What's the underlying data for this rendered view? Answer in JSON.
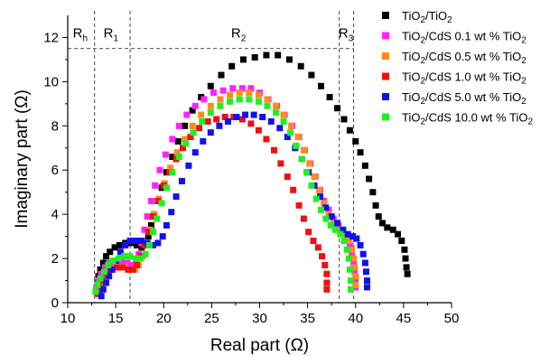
{
  "chart_data": {
    "type": "scatter",
    "title": "",
    "xlabel": "Real part (Ω)",
    "ylabel": "Imaginary part (Ω)",
    "xlim": [
      10,
      50
    ],
    "ylim": [
      0,
      13
    ],
    "x_ticks": [
      10,
      15,
      20,
      25,
      30,
      35,
      40,
      45,
      50
    ],
    "y_ticks": [
      0,
      2,
      4,
      6,
      8,
      10,
      12
    ],
    "legend_position": "top-right",
    "grid": false,
    "series": [
      {
        "name_main": "TiO",
        "name_sub1": "2",
        "name_mid": "/TiO",
        "name_sub2": "2",
        "name_end": "",
        "color": "#000000",
        "points": [
          [
            13.0,
            0.6
          ],
          [
            13.1,
            0.9
          ],
          [
            13.2,
            1.2
          ],
          [
            13.4,
            1.5
          ],
          [
            13.7,
            1.8
          ],
          [
            14.0,
            2.1
          ],
          [
            14.4,
            2.3
          ],
          [
            14.9,
            2.5
          ],
          [
            15.4,
            2.6
          ],
          [
            16.0,
            2.7
          ],
          [
            16.6,
            2.7
          ],
          [
            17.2,
            2.6
          ],
          [
            17.7,
            2.5
          ],
          [
            18.1,
            2.6
          ],
          [
            18.4,
            3.0
          ],
          [
            18.7,
            3.5
          ],
          [
            19.0,
            4.0
          ],
          [
            19.4,
            4.6
          ],
          [
            19.8,
            5.2
          ],
          [
            20.3,
            5.9
          ],
          [
            20.9,
            6.6
          ],
          [
            21.5,
            7.3
          ],
          [
            22.2,
            8.0
          ],
          [
            23.0,
            8.7
          ],
          [
            23.9,
            9.3
          ],
          [
            24.9,
            9.8
          ],
          [
            26.0,
            10.3
          ],
          [
            27.1,
            10.7
          ],
          [
            28.3,
            11.0
          ],
          [
            29.5,
            11.1
          ],
          [
            30.7,
            11.2
          ],
          [
            31.9,
            11.2
          ],
          [
            33.1,
            11.0
          ],
          [
            34.3,
            10.7
          ],
          [
            35.4,
            10.3
          ],
          [
            36.4,
            9.8
          ],
          [
            37.3,
            9.3
          ],
          [
            38.1,
            8.8
          ],
          [
            38.8,
            8.3
          ],
          [
            39.4,
            7.8
          ],
          [
            40.0,
            7.3
          ],
          [
            40.5,
            6.8
          ],
          [
            41.0,
            6.2
          ],
          [
            41.4,
            5.6
          ],
          [
            41.8,
            5.0
          ],
          [
            42.1,
            4.4
          ],
          [
            42.4,
            3.9
          ],
          [
            42.8,
            3.6
          ],
          [
            43.3,
            3.4
          ],
          [
            43.9,
            3.3
          ],
          [
            44.4,
            3.1
          ],
          [
            44.8,
            2.8
          ],
          [
            45.1,
            2.4
          ],
          [
            45.2,
            2.0
          ],
          [
            45.3,
            1.6
          ],
          [
            45.4,
            1.3
          ]
        ]
      },
      {
        "name_main": "TiO",
        "name_sub1": "2",
        "name_mid": "/CdS 0.1 wt % TiO",
        "name_sub2": "2",
        "name_end": "",
        "color": "#ff22ff",
        "points": [
          [
            13.0,
            0.7
          ],
          [
            13.2,
            1.0
          ],
          [
            13.5,
            1.3
          ],
          [
            13.9,
            1.6
          ],
          [
            14.4,
            1.8
          ],
          [
            15.0,
            1.9
          ],
          [
            15.6,
            1.9
          ],
          [
            16.2,
            1.8
          ],
          [
            16.7,
            1.7
          ],
          [
            17.1,
            1.8
          ],
          [
            17.4,
            2.2
          ],
          [
            17.7,
            2.7
          ],
          [
            18.0,
            3.3
          ],
          [
            18.3,
            3.9
          ],
          [
            18.7,
            4.6
          ],
          [
            19.1,
            5.3
          ],
          [
            19.6,
            6.0
          ],
          [
            20.2,
            6.7
          ],
          [
            20.9,
            7.4
          ],
          [
            21.6,
            8.0
          ],
          [
            22.4,
            8.5
          ],
          [
            23.3,
            8.9
          ],
          [
            24.2,
            9.2
          ],
          [
            25.2,
            9.5
          ],
          [
            26.2,
            9.6
          ],
          [
            27.2,
            9.7
          ],
          [
            28.2,
            9.7
          ],
          [
            29.1,
            9.7
          ],
          [
            30.0,
            9.5
          ],
          [
            30.9,
            9.2
          ],
          [
            31.8,
            8.9
          ],
          [
            32.6,
            8.5
          ],
          [
            33.4,
            8.0
          ],
          [
            34.1,
            7.5
          ],
          [
            34.7,
            6.9
          ],
          [
            35.3,
            6.3
          ],
          [
            35.8,
            5.7
          ],
          [
            36.3,
            5.1
          ],
          [
            36.7,
            4.6
          ],
          [
            37.2,
            4.2
          ],
          [
            37.7,
            3.8
          ],
          [
            38.2,
            3.5
          ],
          [
            38.7,
            3.2
          ],
          [
            39.1,
            2.9
          ],
          [
            39.4,
            2.6
          ],
          [
            39.6,
            2.2
          ],
          [
            39.8,
            1.8
          ],
          [
            39.9,
            1.4
          ],
          [
            40.0,
            1.0
          ],
          [
            40.0,
            0.7
          ]
        ]
      },
      {
        "name_main": "TiO",
        "name_sub1": "2",
        "name_mid": "/CdS 0.5 wt % TiO",
        "name_sub2": "2",
        "name_end": "",
        "color": "#ff8c1a",
        "points": [
          [
            13.3,
            0.4
          ],
          [
            13.5,
            0.7
          ],
          [
            13.8,
            1.0
          ],
          [
            14.2,
            1.3
          ],
          [
            14.7,
            1.5
          ],
          [
            15.3,
            1.6
          ],
          [
            15.9,
            1.6
          ],
          [
            16.5,
            1.5
          ],
          [
            17.0,
            1.5
          ],
          [
            17.4,
            1.7
          ],
          [
            17.8,
            2.1
          ],
          [
            18.2,
            2.7
          ],
          [
            18.6,
            3.3
          ],
          [
            19.0,
            4.0
          ],
          [
            19.5,
            4.7
          ],
          [
            20.1,
            5.4
          ],
          [
            20.7,
            6.1
          ],
          [
            21.4,
            6.8
          ],
          [
            22.2,
            7.4
          ],
          [
            23.0,
            8.0
          ],
          [
            23.9,
            8.5
          ],
          [
            24.9,
            8.9
          ],
          [
            25.9,
            9.2
          ],
          [
            26.9,
            9.4
          ],
          [
            27.9,
            9.5
          ],
          [
            28.9,
            9.5
          ],
          [
            29.9,
            9.4
          ],
          [
            30.8,
            9.2
          ],
          [
            31.7,
            8.9
          ],
          [
            32.5,
            8.5
          ],
          [
            33.3,
            8.0
          ],
          [
            34.0,
            7.5
          ],
          [
            34.6,
            6.9
          ],
          [
            35.2,
            6.3
          ],
          [
            35.7,
            5.7
          ],
          [
            36.2,
            5.1
          ],
          [
            36.7,
            4.5
          ],
          [
            37.2,
            4.0
          ],
          [
            37.8,
            3.6
          ],
          [
            38.4,
            3.3
          ],
          [
            38.9,
            3.1
          ],
          [
            39.3,
            2.8
          ],
          [
            39.6,
            2.4
          ],
          [
            39.8,
            2.0
          ],
          [
            39.9,
            1.6
          ],
          [
            40.0,
            1.2
          ],
          [
            40.0,
            0.8
          ]
        ]
      },
      {
        "name_main": "TiO",
        "name_sub1": "2",
        "name_mid": "/CdS 1.0 wt % TiO",
        "name_sub2": "2",
        "name_end": "",
        "color": "#ee1111",
        "points": [
          [
            13.1,
            0.4
          ],
          [
            13.3,
            0.7
          ],
          [
            13.6,
            1.0
          ],
          [
            14.0,
            1.3
          ],
          [
            14.5,
            1.5
          ],
          [
            15.1,
            1.6
          ],
          [
            15.7,
            1.6
          ],
          [
            16.3,
            1.5
          ],
          [
            16.8,
            1.5
          ],
          [
            17.2,
            1.7
          ],
          [
            17.6,
            2.1
          ],
          [
            18.0,
            2.6
          ],
          [
            18.4,
            3.2
          ],
          [
            18.9,
            3.9
          ],
          [
            19.4,
            4.6
          ],
          [
            20.0,
            5.3
          ],
          [
            20.6,
            5.9
          ],
          [
            21.3,
            6.5
          ],
          [
            22.0,
            7.0
          ],
          [
            22.8,
            7.5
          ],
          [
            23.7,
            7.9
          ],
          [
            24.6,
            8.2
          ],
          [
            25.5,
            8.3
          ],
          [
            26.4,
            8.4
          ],
          [
            27.3,
            8.4
          ],
          [
            28.2,
            8.3
          ],
          [
            29.1,
            8.1
          ],
          [
            29.9,
            7.8
          ],
          [
            30.7,
            7.4
          ],
          [
            31.5,
            6.9
          ],
          [
            32.2,
            6.3
          ],
          [
            32.9,
            5.7
          ],
          [
            33.5,
            5.1
          ],
          [
            34.1,
            4.4
          ],
          [
            34.6,
            3.8
          ],
          [
            35.1,
            3.2
          ],
          [
            35.6,
            2.8
          ],
          [
            36.1,
            2.5
          ],
          [
            36.5,
            2.1
          ],
          [
            36.8,
            1.7
          ],
          [
            37.0,
            1.3
          ],
          [
            37.0,
            0.9
          ],
          [
            37.0,
            0.6
          ]
        ]
      },
      {
        "name_main": "TiO",
        "name_sub1": "2",
        "name_mid": "/CdS 5.0 wt % TiO",
        "name_sub2": "2",
        "name_end": "",
        "color": "#1111ee",
        "points": [
          [
            13.5,
            0.3
          ],
          [
            13.7,
            0.6
          ],
          [
            14.0,
            0.9
          ],
          [
            14.3,
            1.2
          ],
          [
            14.6,
            1.5
          ],
          [
            15.0,
            1.9
          ],
          [
            15.5,
            2.3
          ],
          [
            16.0,
            2.6
          ],
          [
            16.5,
            2.8
          ],
          [
            17.1,
            2.8
          ],
          [
            17.7,
            2.8
          ],
          [
            18.3,
            2.7
          ],
          [
            18.9,
            2.6
          ],
          [
            19.4,
            2.7
          ],
          [
            19.9,
            3.0
          ],
          [
            20.3,
            3.5
          ],
          [
            20.8,
            4.1
          ],
          [
            21.3,
            4.8
          ],
          [
            21.9,
            5.5
          ],
          [
            22.6,
            6.2
          ],
          [
            23.3,
            6.8
          ],
          [
            24.1,
            7.3
          ],
          [
            24.9,
            7.7
          ],
          [
            25.8,
            8.0
          ],
          [
            26.7,
            8.2
          ],
          [
            27.6,
            8.4
          ],
          [
            28.5,
            8.5
          ],
          [
            29.4,
            8.5
          ],
          [
            30.3,
            8.4
          ],
          [
            31.2,
            8.2
          ],
          [
            32.1,
            7.9
          ],
          [
            32.9,
            7.5
          ],
          [
            33.7,
            7.0
          ],
          [
            34.4,
            6.5
          ],
          [
            35.1,
            5.9
          ],
          [
            35.7,
            5.3
          ],
          [
            36.3,
            4.8
          ],
          [
            36.9,
            4.3
          ],
          [
            37.5,
            3.9
          ],
          [
            38.1,
            3.6
          ],
          [
            38.7,
            3.3
          ],
          [
            39.2,
            3.1
          ],
          [
            39.7,
            3.0
          ],
          [
            40.1,
            2.9
          ],
          [
            40.5,
            2.6
          ],
          [
            40.8,
            2.2
          ],
          [
            41.0,
            1.8
          ],
          [
            41.1,
            1.4
          ],
          [
            41.2,
            1.0
          ],
          [
            41.2,
            0.7
          ]
        ]
      },
      {
        "name_main": "TiO",
        "name_sub1": "2",
        "name_mid": "/CdS 10.0 wt % TiO",
        "name_sub2": "2",
        "name_end": "",
        "color": "#22ee22",
        "points": [
          [
            12.9,
            0.5
          ],
          [
            13.1,
            0.8
          ],
          [
            13.4,
            1.1
          ],
          [
            13.8,
            1.4
          ],
          [
            14.2,
            1.7
          ],
          [
            14.7,
            1.9
          ],
          [
            15.3,
            2.0
          ],
          [
            15.9,
            2.1
          ],
          [
            16.5,
            2.1
          ],
          [
            17.1,
            2.0
          ],
          [
            17.6,
            2.0
          ],
          [
            18.1,
            2.2
          ],
          [
            18.5,
            2.6
          ],
          [
            18.9,
            3.2
          ],
          [
            19.3,
            3.8
          ],
          [
            19.8,
            4.5
          ],
          [
            20.3,
            5.2
          ],
          [
            20.9,
            5.9
          ],
          [
            21.6,
            6.6
          ],
          [
            22.3,
            7.2
          ],
          [
            23.1,
            7.7
          ],
          [
            24.0,
            8.2
          ],
          [
            24.9,
            8.6
          ],
          [
            25.9,
            8.9
          ],
          [
            26.9,
            9.1
          ],
          [
            27.9,
            9.2
          ],
          [
            28.9,
            9.2
          ],
          [
            29.9,
            9.1
          ],
          [
            30.8,
            8.9
          ],
          [
            31.7,
            8.6
          ],
          [
            32.5,
            8.2
          ],
          [
            33.2,
            7.7
          ],
          [
            33.8,
            7.1
          ],
          [
            34.4,
            6.5
          ],
          [
            34.9,
            5.9
          ],
          [
            35.4,
            5.3
          ],
          [
            35.9,
            4.7
          ],
          [
            36.4,
            4.2
          ],
          [
            36.9,
            3.8
          ],
          [
            37.4,
            3.5
          ],
          [
            37.9,
            3.3
          ],
          [
            38.4,
            3.1
          ],
          [
            38.8,
            2.8
          ],
          [
            39.1,
            2.4
          ],
          [
            39.3,
            2.0
          ],
          [
            39.4,
            1.5
          ],
          [
            39.5,
            1.0
          ],
          [
            39.5,
            0.6
          ]
        ]
      }
    ],
    "vertical_lines_x": [
      12.8,
      16.5,
      38.3,
      39.8
    ],
    "horizontal_line": {
      "y": 11.5,
      "x_from": 10,
      "x_to": 39.8
    },
    "region_labels": [
      {
        "text": "R",
        "sub": "h",
        "x": 11.3,
        "y": 12.0
      },
      {
        "text": "R",
        "sub": "1",
        "x": 14.5,
        "y": 12.0
      },
      {
        "text": "R",
        "sub": "2",
        "x": 27.8,
        "y": 12.0
      },
      {
        "text": "R",
        "sub": "3",
        "x": 39.0,
        "y": 12.0
      }
    ]
  }
}
